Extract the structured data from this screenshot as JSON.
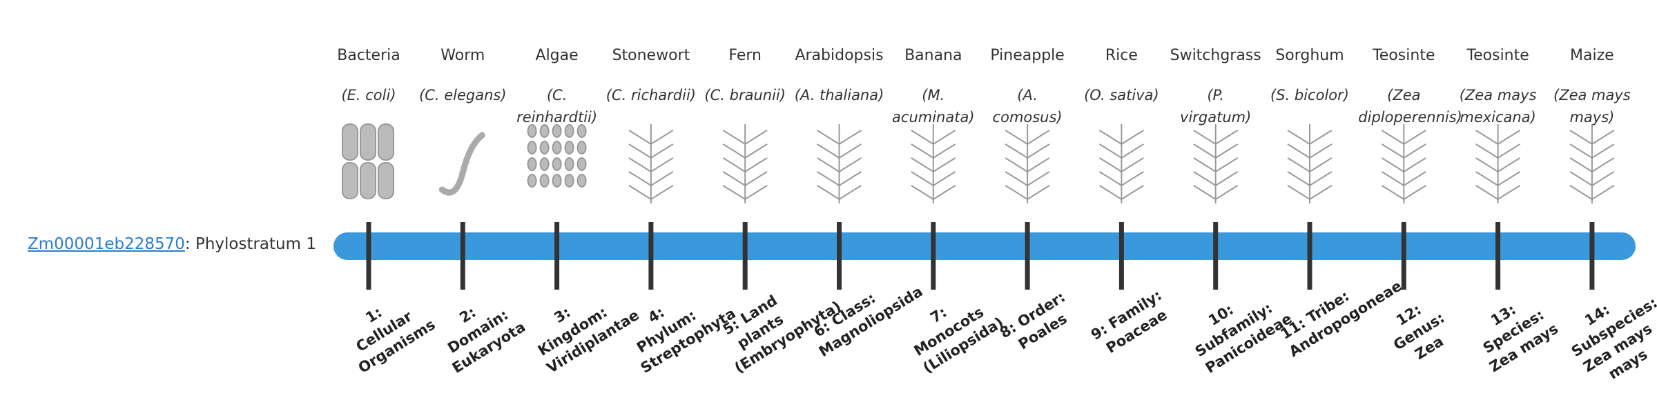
{
  "gene": {
    "id": "Zm00001eb228570",
    "label": ": Phylostratum 1"
  },
  "organisms": [
    {
      "name": "Bacteria",
      "species": "(E. coli)"
    },
    {
      "name": "Worm",
      "species": "(C. elegans)"
    },
    {
      "name": "Algae",
      "species": "(C. reinhardtii)"
    },
    {
      "name": "Stonewort",
      "species": "(C. richardii)"
    },
    {
      "name": "Fern",
      "species": "(C. braunii)"
    },
    {
      "name": "Arabidopsis",
      "species": "(A. thaliana)"
    },
    {
      "name": "Banana",
      "species": "(M. acuminata)"
    },
    {
      "name": "Pineapple",
      "species": "(A. comosus)"
    },
    {
      "name": "Rice",
      "species": "(O. sativa)"
    },
    {
      "name": "Switchgrass",
      "species": "(P. virgatum)"
    },
    {
      "name": "Sorghum",
      "species": "(S. bicolor)"
    },
    {
      "name": "Teosinte",
      "species": "(Zea diploperennis)"
    },
    {
      "name": "Teosinte",
      "species": "(Zea mays mexicana)"
    },
    {
      "name": "Maize",
      "species": "(Zea mays mays)"
    }
  ],
  "strata": [
    "1: Cellular Organisms",
    "2: Domain: Eukaryota",
    "3: Kingdom: Viridiplantae",
    "4: Phylum: Streptophyta",
    "5: Land plants (Embryophyta)",
    "6: Class: Magnoliopsida",
    "7: Monocots (Liliopsida)",
    "8: Order: Poales",
    "9: Family: Poaceae",
    "10: Subfamily: Panicoideae",
    "11: Tribe: Andropogoneae",
    "12: Genus: Zea",
    "13: Species: Zea mays",
    "14: Subspecies: Zea mays mays"
  ]
}
